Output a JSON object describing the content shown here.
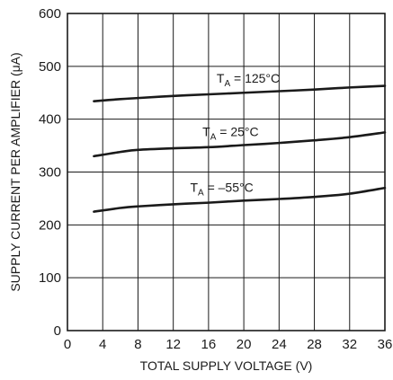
{
  "chart_data": {
    "type": "line",
    "xlabel": "TOTAL SUPPLY VOLTAGE (V)",
    "ylabel": "SUPPLY CURRENT PER AMPLIFIER (μA)",
    "xlim": [
      0,
      36
    ],
    "ylim": [
      0,
      600
    ],
    "xticks": [
      0,
      4,
      8,
      12,
      16,
      20,
      24,
      28,
      32,
      36
    ],
    "yticks": [
      0,
      100,
      200,
      300,
      400,
      500,
      600
    ],
    "grid": true,
    "series": [
      {
        "label_main": "T",
        "label_sub": "A",
        "label_rest": " = 125°C",
        "x": [
          3,
          6,
          8,
          12,
          16,
          20,
          24,
          28,
          32,
          36
        ],
        "values": [
          434,
          438,
          440,
          444,
          447,
          450,
          453,
          456,
          460,
          463
        ]
      },
      {
        "label_main": "T",
        "label_sub": "A",
        "label_rest": " = 25°C",
        "x": [
          3,
          6,
          8,
          12,
          16,
          20,
          24,
          28,
          32,
          36
        ],
        "values": [
          330,
          338,
          342,
          345,
          347,
          351,
          355,
          360,
          366,
          375
        ]
      },
      {
        "label_main": "T",
        "label_sub": "A",
        "label_rest": " = –55°C",
        "x": [
          3,
          6,
          8,
          12,
          16,
          20,
          24,
          28,
          32,
          36
        ],
        "values": [
          225,
          232,
          235,
          239,
          242,
          246,
          249,
          253,
          259,
          270
        ]
      }
    ]
  }
}
